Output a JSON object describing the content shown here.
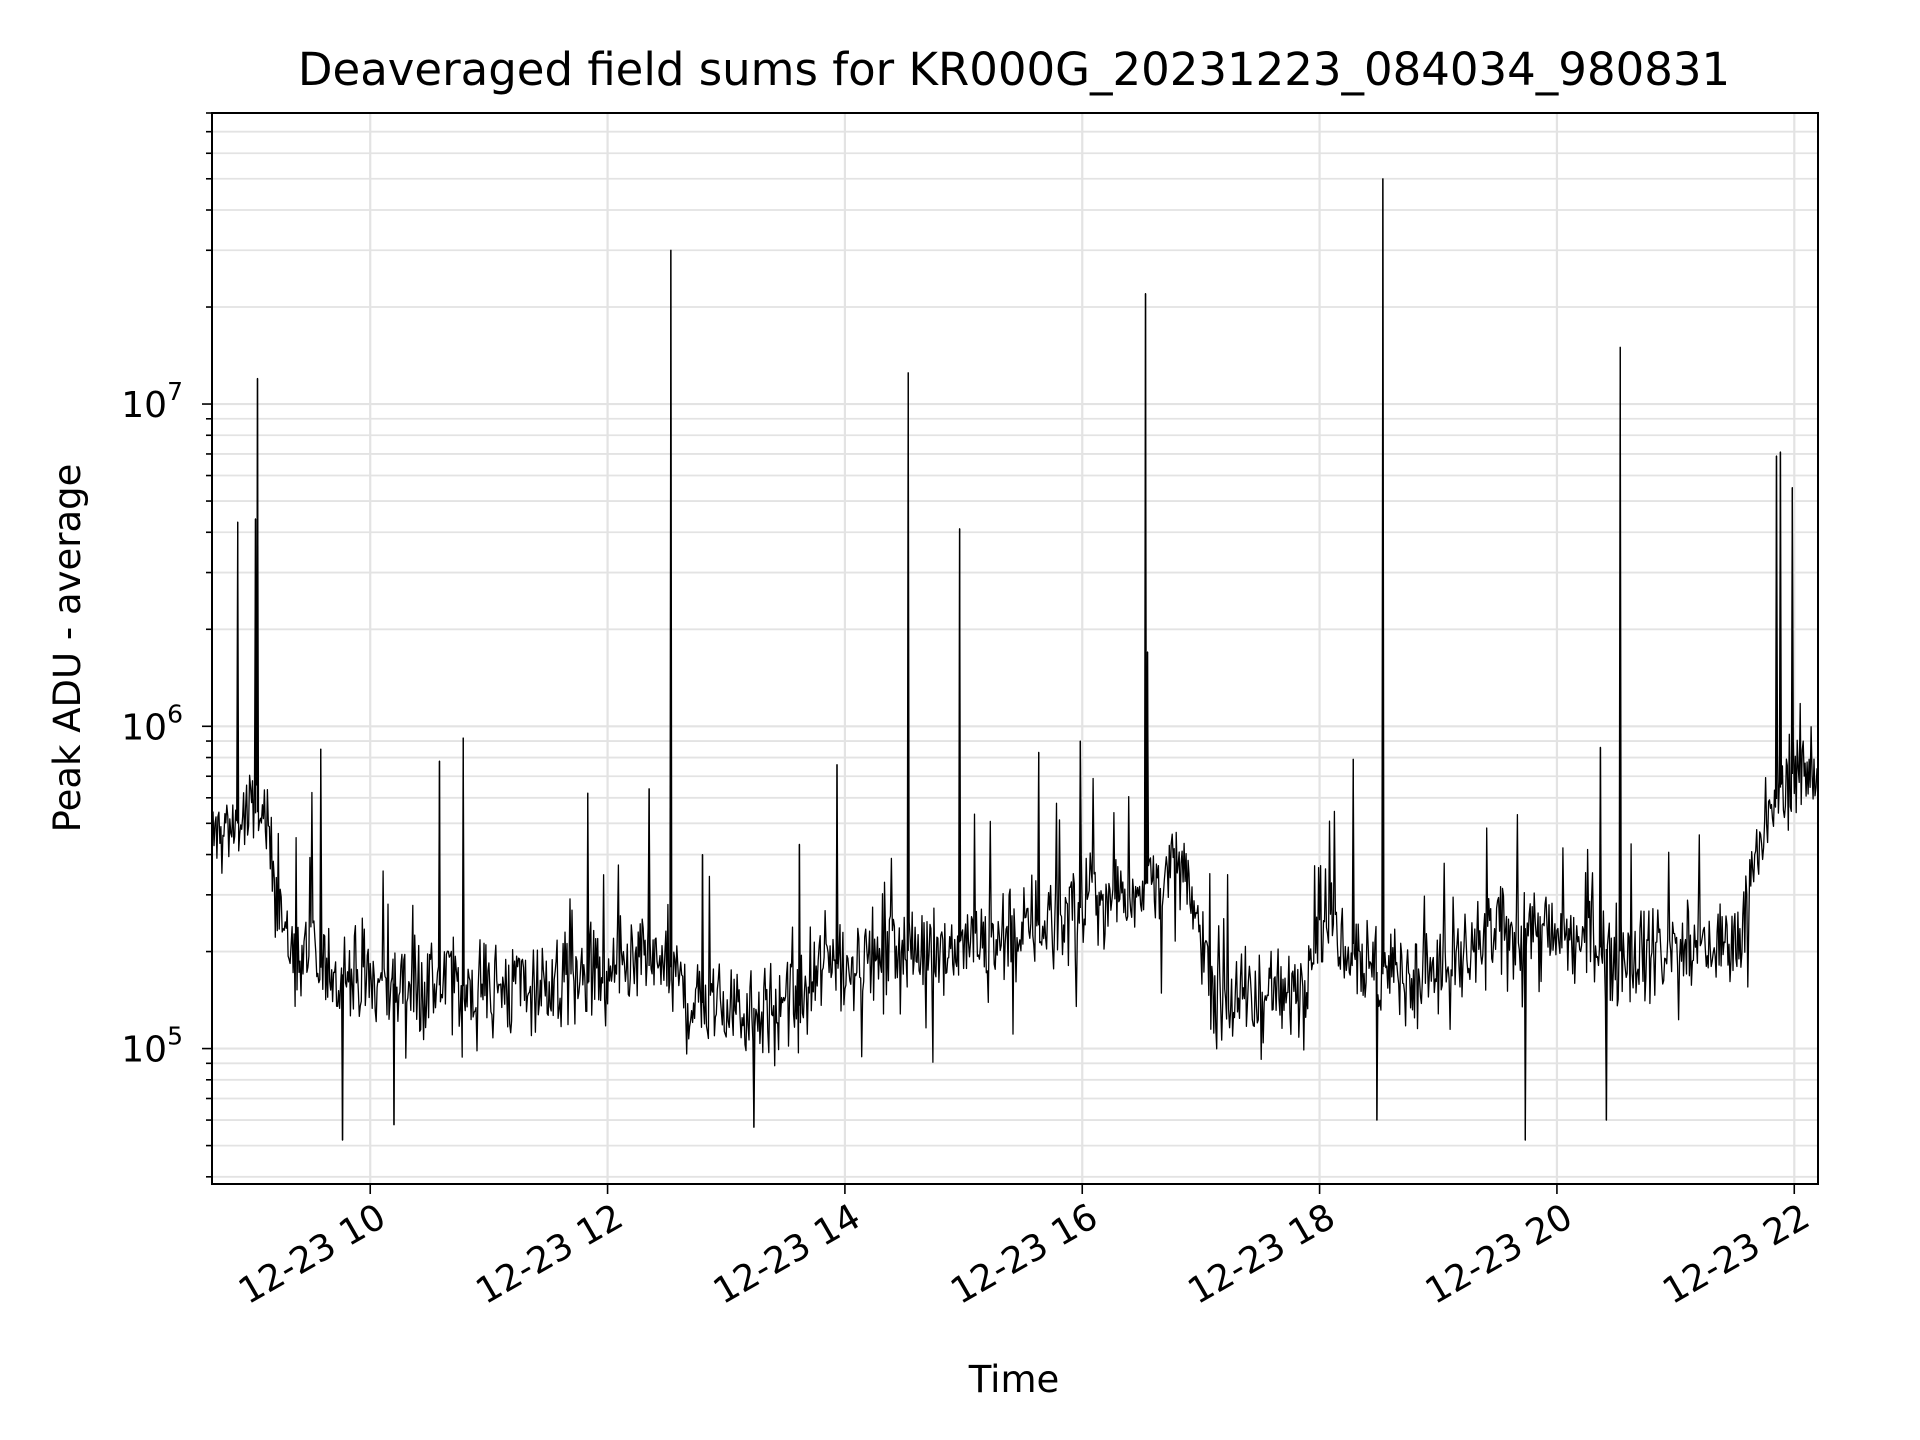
{
  "chart_data": {
    "type": "line",
    "title": "Deaveraged field sums for KR000G_20231223_084034_980831",
    "xlabel": "Time",
    "ylabel": "Peak ADU - average",
    "yscale": "log",
    "ylim": [
      38000,
      80000000
    ],
    "xlim": [
      "2023-12-23 08:40",
      "2023-12-23 22:12"
    ],
    "grid": true,
    "x_ticks": [
      "12-23 10",
      "12-23 12",
      "12-23 14",
      "12-23 16",
      "12-23 18",
      "12-23 20",
      "12-23 22"
    ],
    "y_ticks": [
      {
        "base": "10",
        "exp": "5",
        "value": 100000
      },
      {
        "base": "10",
        "exp": "6",
        "value": 1000000
      },
      {
        "base": "10",
        "exp": "7",
        "value": 10000000
      }
    ],
    "series": [
      {
        "color": "#000000",
        "baseline": [
          [
            "2023-12-23 08:40",
            450000
          ],
          [
            "2023-12-23 09:05",
            550000
          ],
          [
            "2023-12-23 09:20",
            190000
          ],
          [
            "2023-12-23 10:00",
            160000
          ],
          [
            "2023-12-23 11:00",
            155000
          ],
          [
            "2023-12-23 12:00",
            160000
          ],
          [
            "2023-12-23 12:30",
            190000
          ],
          [
            "2023-12-23 12:40",
            140000
          ],
          [
            "2023-12-23 13:35",
            130000
          ],
          [
            "2023-12-23 13:50",
            180000
          ],
          [
            "2023-12-23 14:30",
            200000
          ],
          [
            "2023-12-23 15:30",
            230000
          ],
          [
            "2023-12-23 16:15",
            300000
          ],
          [
            "2023-12-23 16:50",
            350000
          ],
          [
            "2023-12-23 17:10",
            140000
          ],
          [
            "2023-12-23 17:50",
            150000
          ],
          [
            "2023-12-23 18:00",
            280000
          ],
          [
            "2023-12-23 18:30",
            170000
          ],
          [
            "2023-12-23 19:00",
            170000
          ],
          [
            "2023-12-23 19:40",
            240000
          ],
          [
            "2023-12-23 20:30",
            200000
          ],
          [
            "2023-12-23 21:30",
            210000
          ],
          [
            "2023-12-23 21:40",
            380000
          ],
          [
            "2023-12-23 21:55",
            700000
          ],
          [
            "2023-12-23 22:12",
            750000
          ]
        ],
        "spikes": [
          [
            "2023-12-23 08:53",
            4300000
          ],
          [
            "2023-12-23 09:02",
            4400000
          ],
          [
            "2023-12-23 09:03",
            12000000
          ],
          [
            "2023-12-23 09:35",
            850000
          ],
          [
            "2023-12-23 10:35",
            780000
          ],
          [
            "2023-12-23 10:47",
            920000
          ],
          [
            "2023-12-23 11:50",
            620000
          ],
          [
            "2023-12-23 12:21",
            640000
          ],
          [
            "2023-12-23 12:32",
            30000000
          ],
          [
            "2023-12-23 12:48",
            400000
          ],
          [
            "2023-12-23 13:37",
            430000
          ],
          [
            "2023-12-23 13:56",
            760000
          ],
          [
            "2023-12-23 14:32",
            12500000
          ],
          [
            "2023-12-23 14:58",
            4100000
          ],
          [
            "2023-12-23 15:38",
            830000
          ],
          [
            "2023-12-23 15:59",
            900000
          ],
          [
            "2023-12-23 16:32",
            22000000
          ],
          [
            "2023-12-23 16:33",
            1700000
          ],
          [
            "2023-12-23 18:17",
            790000
          ],
          [
            "2023-12-23 18:32",
            50000000
          ],
          [
            "2023-12-23 20:22",
            860000
          ],
          [
            "2023-12-23 20:32",
            15000000
          ],
          [
            "2023-12-23 21:51",
            6900000
          ],
          [
            "2023-12-23 21:53",
            7100000
          ],
          [
            "2023-12-23 21:59",
            5500000
          ]
        ],
        "min_dips": [
          [
            "2023-12-23 09:46",
            52000
          ],
          [
            "2023-12-23 10:12",
            58000
          ],
          [
            "2023-12-23 13:14",
            57000
          ],
          [
            "2023-12-23 18:29",
            60000
          ],
          [
            "2023-12-23 19:44",
            52000
          ],
          [
            "2023-12-23 20:25",
            60000
          ]
        ]
      }
    ]
  }
}
